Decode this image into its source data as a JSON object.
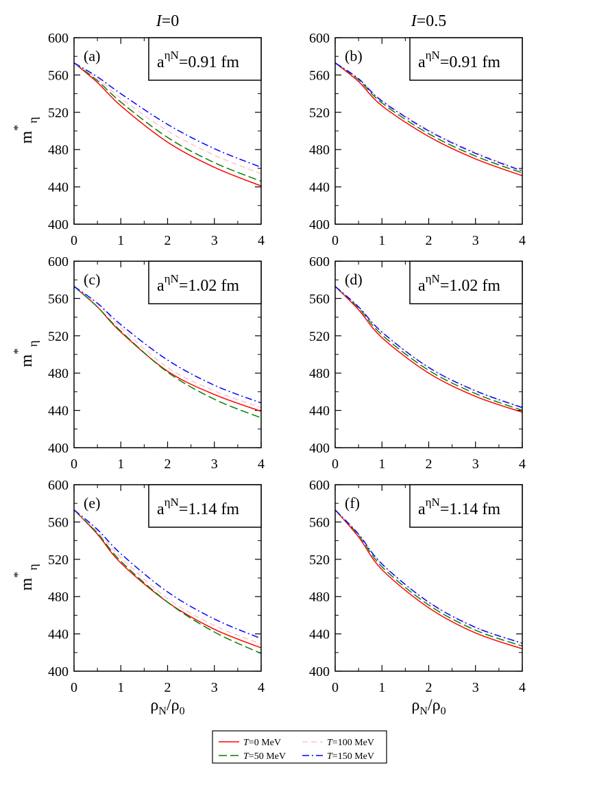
{
  "column_titles": [
    {
      "var": "I",
      "value": "=0"
    },
    {
      "var": "I",
      "value": "=0.5"
    }
  ],
  "ylabel": {
    "main": "m",
    "sup": "*",
    "sub": "η"
  },
  "xlabel": {
    "rho": "ρ",
    "sub": "N",
    "slash": "/ρ",
    "sub0": "0"
  },
  "legend": [
    {
      "var": "T",
      "label": "=0 MeV",
      "color": "#ff0000",
      "dash": "none"
    },
    {
      "var": "T",
      "label": "=100 MeV",
      "color": "#ffc0cb",
      "dash": "8,5"
    },
    {
      "var": "T",
      "label": "=50 MeV",
      "color": "#008000",
      "dash": "12,5"
    },
    {
      "var": "T",
      "label": "=150 MeV",
      "color": "#0000ff",
      "dash": "10,4,2,4"
    }
  ],
  "chart_data": [
    {
      "type": "line",
      "panel": "(a)",
      "annotation": {
        "a": "a",
        "sup": "ηN",
        "val": "=0.91 fm"
      },
      "xlim": [
        0,
        4
      ],
      "ylim": [
        400,
        600
      ],
      "xticks": [
        0,
        1,
        2,
        3,
        4
      ],
      "yticks": [
        400,
        440,
        480,
        520,
        560,
        600
      ],
      "x": [
        0,
        0.5,
        1,
        2,
        3,
        4
      ],
      "series": [
        {
          "name": "T=0 MeV",
          "values": [
            573,
            552,
            527,
            488,
            461,
            441
          ]
        },
        {
          "name": "T=50 MeV",
          "values": [
            573,
            554,
            531,
            493,
            466,
            446
          ]
        },
        {
          "name": "T=100 MeV",
          "values": [
            573,
            556,
            535,
            500,
            474,
            454
          ]
        },
        {
          "name": "T=150 MeV",
          "values": [
            573,
            558,
            540,
            507,
            481,
            461
          ]
        }
      ]
    },
    {
      "type": "line",
      "panel": "(b)",
      "annotation": {
        "a": "a",
        "sup": "ηN",
        "val": "=0.91 fm"
      },
      "xlim": [
        0,
        4
      ],
      "ylim": [
        400,
        600
      ],
      "xticks": [
        0,
        1,
        2,
        3,
        4
      ],
      "yticks": [
        400,
        440,
        480,
        520,
        560,
        600
      ],
      "x": [
        0,
        0.5,
        1,
        2,
        3,
        4
      ],
      "series": [
        {
          "name": "T=0 MeV",
          "values": [
            573,
            553,
            527,
            494,
            470,
            452
          ]
        },
        {
          "name": "T=50 MeV",
          "values": [
            573,
            555,
            530,
            497,
            473,
            455
          ]
        },
        {
          "name": "T=100 MeV",
          "values": [
            573,
            556,
            533,
            501,
            477,
            458
          ]
        },
        {
          "name": "T=150 MeV",
          "values": [
            573,
            556,
            532,
            500,
            476,
            457
          ]
        }
      ]
    },
    {
      "type": "line",
      "panel": "(c)",
      "annotation": {
        "a": "a",
        "sup": "ηN",
        "val": "=1.02 fm"
      },
      "xlim": [
        0,
        4
      ],
      "ylim": [
        400,
        600
      ],
      "xticks": [
        0,
        1,
        2,
        3,
        4
      ],
      "yticks": [
        400,
        440,
        480,
        520,
        560,
        600
      ],
      "x": [
        0,
        0.5,
        1,
        2,
        3,
        4
      ],
      "series": [
        {
          "name": "T=0 MeV",
          "values": [
            573,
            551,
            524,
            482,
            457,
            439
          ]
        },
        {
          "name": "T=50 MeV",
          "values": [
            573,
            551,
            525,
            481,
            452,
            432
          ]
        },
        {
          "name": "T=100 MeV",
          "values": [
            573,
            554,
            529,
            486,
            461,
            443
          ]
        },
        {
          "name": "T=150 MeV",
          "values": [
            573,
            555,
            532,
            494,
            467,
            448
          ]
        }
      ]
    },
    {
      "type": "line",
      "panel": "(d)",
      "annotation": {
        "a": "a",
        "sup": "ηN",
        "val": "=1.02 fm"
      },
      "xlim": [
        0,
        4
      ],
      "ylim": [
        400,
        600
      ],
      "xticks": [
        0,
        1,
        2,
        3,
        4
      ],
      "yticks": [
        400,
        440,
        480,
        520,
        560,
        600
      ],
      "x": [
        0,
        0.5,
        1,
        2,
        3,
        4
      ],
      "series": [
        {
          "name": "T=0 MeV",
          "values": [
            573,
            548,
            518,
            480,
            455,
            438
          ]
        },
        {
          "name": "T=50 MeV",
          "values": [
            573,
            550,
            521,
            483,
            458,
            440
          ]
        },
        {
          "name": "T=100 MeV",
          "values": [
            573,
            551,
            524,
            486,
            461,
            443
          ]
        },
        {
          "name": "T=150 MeV",
          "values": [
            573,
            551,
            524,
            486,
            461,
            443
          ]
        }
      ]
    },
    {
      "type": "line",
      "panel": "(e)",
      "annotation": {
        "a": "a",
        "sup": "ηN",
        "val": "=1.14 fm"
      },
      "xlim": [
        0,
        4
      ],
      "ylim": [
        400,
        600
      ],
      "xticks": [
        0,
        1,
        2,
        3,
        4
      ],
      "yticks": [
        400,
        440,
        480,
        520,
        560,
        600
      ],
      "x": [
        0,
        0.5,
        1,
        2,
        3,
        4
      ],
      "series": [
        {
          "name": "T=0 MeV",
          "values": [
            573,
            547,
            516,
            474,
            445,
            425
          ]
        },
        {
          "name": "T=50 MeV",
          "values": [
            573,
            548,
            518,
            474,
            442,
            419
          ]
        },
        {
          "name": "T=100 MeV",
          "values": [
            573,
            550,
            522,
            478,
            449,
            429
          ]
        },
        {
          "name": "T=150 MeV",
          "values": [
            573,
            552,
            526,
            485,
            456,
            435
          ]
        }
      ]
    },
    {
      "type": "line",
      "panel": "(f)",
      "annotation": {
        "a": "a",
        "sup": "ηN",
        "val": "=1.14 fm"
      },
      "xlim": [
        0,
        4
      ],
      "ylim": [
        400,
        600
      ],
      "xticks": [
        0,
        1,
        2,
        3,
        4
      ],
      "yticks": [
        400,
        440,
        480,
        520,
        560,
        600
      ],
      "x": [
        0,
        0.5,
        1,
        2,
        3,
        4
      ],
      "series": [
        {
          "name": "T=0 MeV",
          "values": [
            573,
            544,
            509,
            468,
            441,
            424
          ]
        },
        {
          "name": "T=50 MeV",
          "values": [
            573,
            546,
            512,
            471,
            444,
            427
          ]
        },
        {
          "name": "T=100 MeV",
          "values": [
            573,
            547,
            515,
            474,
            447,
            430
          ]
        },
        {
          "name": "T=150 MeV",
          "values": [
            573,
            547,
            515,
            474,
            447,
            430
          ]
        }
      ]
    }
  ]
}
